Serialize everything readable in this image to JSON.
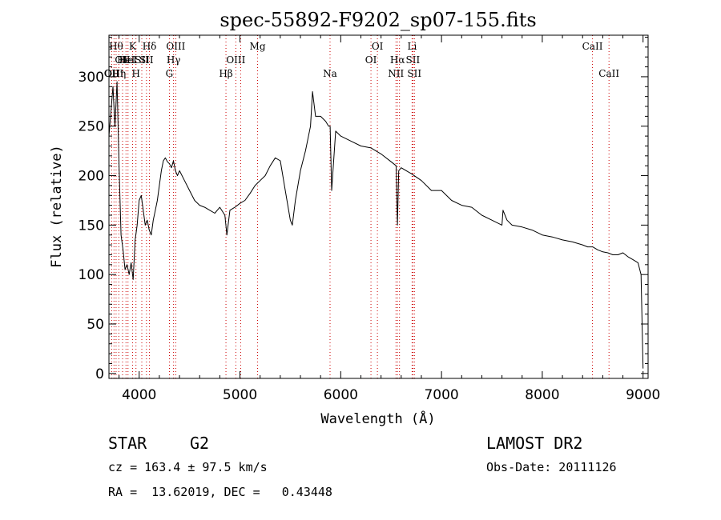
{
  "chart_data": {
    "type": "line",
    "title": "spec-55892-F9202_sp07-155.fits",
    "xlabel": "Wavelength (Å)",
    "ylabel": "Flux (relative)",
    "xlim": [
      3700,
      9050
    ],
    "ylim": [
      -5,
      342
    ],
    "x_ticks": [
      4000,
      5000,
      6000,
      7000,
      8000,
      9000
    ],
    "y_ticks": [
      0,
      50,
      100,
      150,
      200,
      250,
      300
    ],
    "grid": false,
    "series": [
      {
        "x": [
          3700,
          3720,
          3740,
          3760,
          3780,
          3800,
          3820,
          3840,
          3860,
          3880,
          3900,
          3920,
          3940,
          3960,
          3980,
          4000,
          4020,
          4040,
          4060,
          4080,
          4100,
          4120,
          4140,
          4160,
          4180,
          4200,
          4220,
          4240,
          4260,
          4280,
          4300,
          4320,
          4340,
          4360,
          4380,
          4400,
          4450,
          4500,
          4550,
          4600,
          4650,
          4700,
          4750,
          4800,
          4850,
          4870,
          4900,
          4950,
          5000,
          5050,
          5100,
          5150,
          5200,
          5250,
          5300,
          5350,
          5400,
          5450,
          5500,
          5520,
          5550,
          5600,
          5650,
          5700,
          5720,
          5750,
          5800,
          5850,
          5880,
          5895,
          5910,
          5950,
          6000,
          6100,
          6200,
          6300,
          6400,
          6500,
          6550,
          6563,
          6575,
          6600,
          6700,
          6800,
          6900,
          7000,
          7100,
          7200,
          7300,
          7400,
          7500,
          7600,
          7610,
          7650,
          7700,
          7800,
          7900,
          8000,
          8100,
          8200,
          8300,
          8400,
          8450,
          8500,
          8550,
          8600,
          8650,
          8700,
          8750,
          8800,
          8850,
          8900,
          8950,
          8980,
          9000
        ],
        "y": [
          240,
          265,
          290,
          250,
          295,
          210,
          140,
          125,
          105,
          110,
          100,
          112,
          95,
          135,
          150,
          175,
          180,
          165,
          150,
          155,
          145,
          140,
          155,
          165,
          175,
          190,
          205,
          215,
          218,
          214,
          212,
          208,
          215,
          205,
          200,
          205,
          195,
          185,
          175,
          170,
          168,
          165,
          162,
          168,
          160,
          140,
          165,
          168,
          172,
          175,
          182,
          190,
          195,
          200,
          210,
          218,
          215,
          185,
          155,
          150,
          175,
          205,
          225,
          250,
          285,
          260,
          260,
          255,
          250,
          250,
          185,
          245,
          240,
          235,
          230,
          228,
          222,
          214,
          210,
          150,
          205,
          208,
          202,
          195,
          185,
          185,
          175,
          170,
          168,
          160,
          155,
          150,
          165,
          155,
          150,
          148,
          145,
          140,
          138,
          135,
          133,
          130,
          128,
          128,
          125,
          123,
          122,
          120,
          120,
          122,
          118,
          115,
          112,
          100,
          5
        ]
      }
    ],
    "line_marks": [
      {
        "wavelength": 3727,
        "label": "OII",
        "row": 3
      },
      {
        "wavelength": 3750,
        "label": "OIII",
        "row": 3
      },
      {
        "wavelength": 3771,
        "label": "Hθ",
        "row": 1
      },
      {
        "wavelength": 3798,
        "label": "Hη",
        "row": 3
      },
      {
        "wavelength": 3835,
        "label": "OII",
        "row": 2
      },
      {
        "wavelength": 3869,
        "label": "HeI",
        "row": 2
      },
      {
        "wavelength": 3889,
        "label": "HeI",
        "row": 2
      },
      {
        "wavelength": 3934,
        "label": "K",
        "row": 1
      },
      {
        "wavelength": 3968,
        "label": "H",
        "row": 3
      },
      {
        "wavelength": 4026,
        "label": "SII",
        "row": 2
      },
      {
        "wavelength": 4072,
        "label": "SII",
        "row": 2
      },
      {
        "wavelength": 4102,
        "label": "Hδ",
        "row": 1
      },
      {
        "wavelength": 4300,
        "label": "G",
        "row": 3
      },
      {
        "wavelength": 4341,
        "label": "Hγ",
        "row": 2
      },
      {
        "wavelength": 4363,
        "label": "OIII",
        "row": 1
      },
      {
        "wavelength": 4861,
        "label": "Hβ",
        "row": 3
      },
      {
        "wavelength": 4959,
        "label": "OIII",
        "row": 2
      },
      {
        "wavelength": 5007,
        "label": "",
        "row": 0
      },
      {
        "wavelength": 5175,
        "label": "Mg",
        "row": 1
      },
      {
        "wavelength": 5894,
        "label": "Na",
        "row": 3
      },
      {
        "wavelength": 6300,
        "label": "OI",
        "row": 2
      },
      {
        "wavelength": 6364,
        "label": "OI",
        "row": 1
      },
      {
        "wavelength": 6548,
        "label": "NII",
        "row": 3
      },
      {
        "wavelength": 6563,
        "label": "Hα",
        "row": 2
      },
      {
        "wavelength": 6583,
        "label": "",
        "row": 0
      },
      {
        "wavelength": 6708,
        "label": "Li",
        "row": 1
      },
      {
        "wavelength": 6716,
        "label": "SII",
        "row": 2
      },
      {
        "wavelength": 6731,
        "label": "SII",
        "row": 3
      },
      {
        "wavelength": 8498,
        "label": "CaII",
        "row": 1
      },
      {
        "wavelength": 8662,
        "label": "CaII",
        "row": 3
      }
    ],
    "line_mark_color": "#cc0000"
  },
  "info": {
    "object_class": "STAR",
    "subclass": "G2",
    "survey": "LAMOST DR2",
    "cz": "cz = 163.4 ± 97.5 km/s",
    "obs_date": "Obs-Date: 20111126",
    "coords": "RA =  13.62019, DEC =   0.43448"
  }
}
